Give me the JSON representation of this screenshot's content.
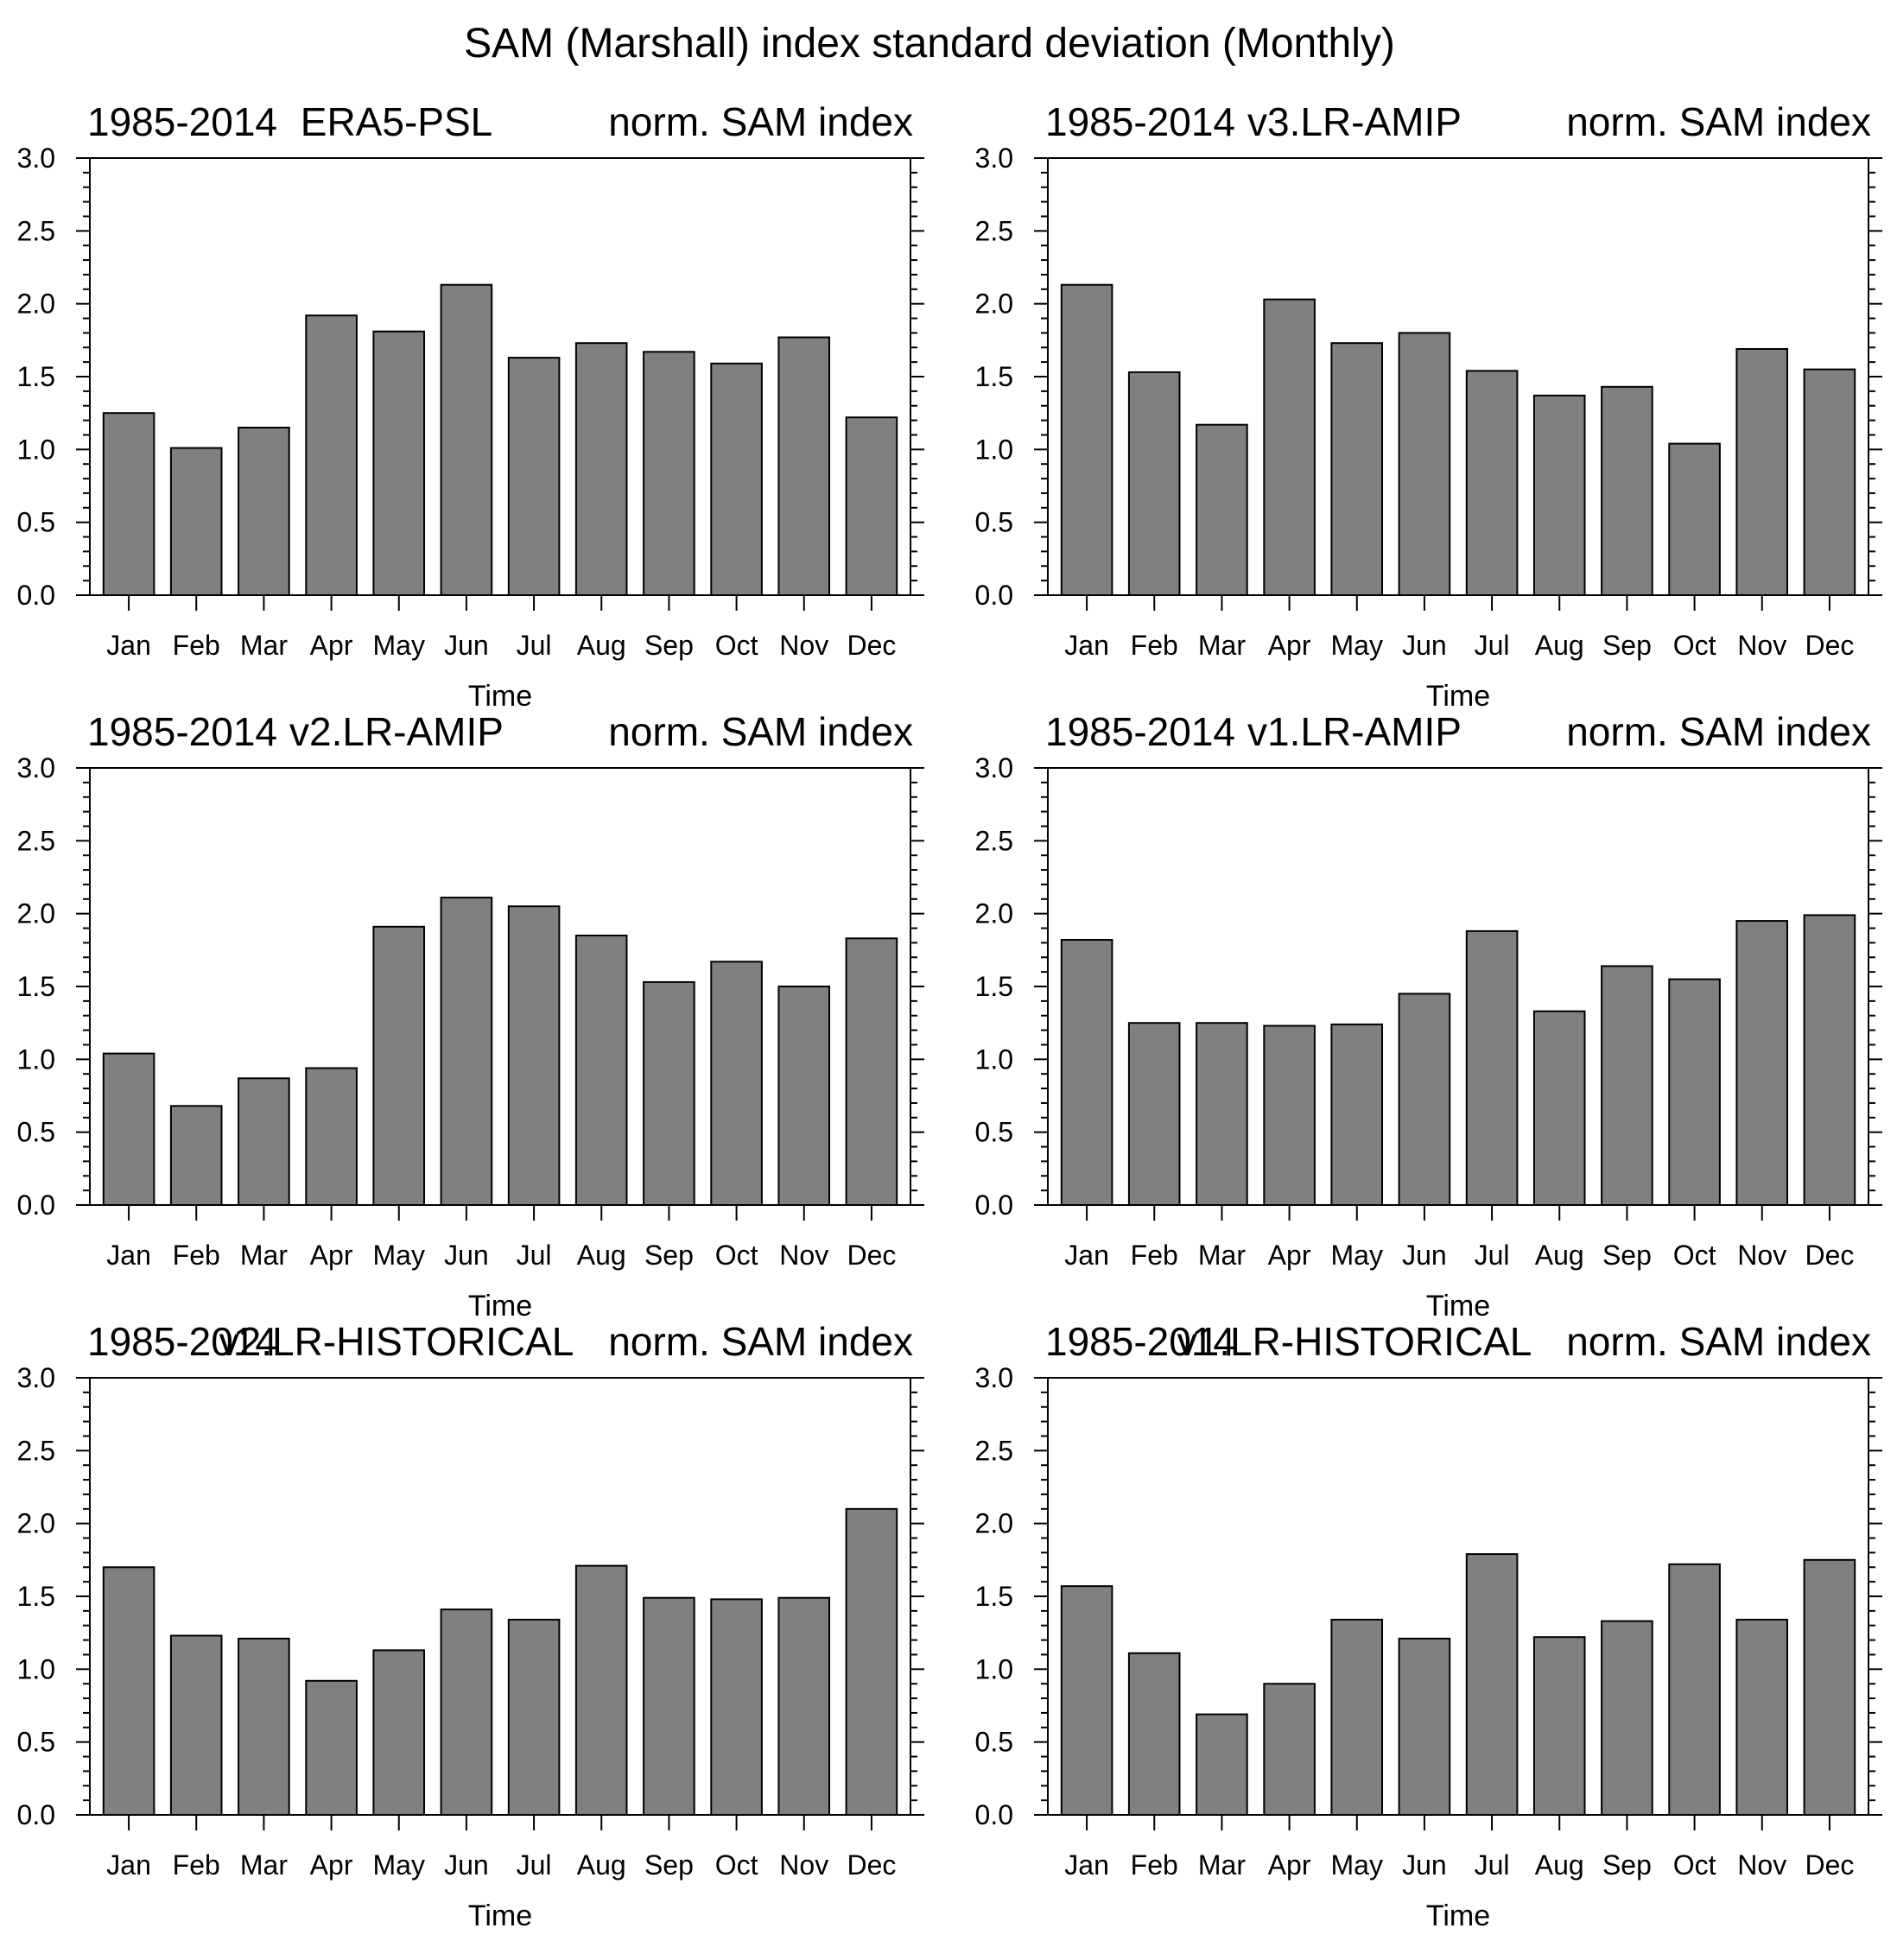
{
  "title": "SAM (Marshall) index standard deviation (Monthly)",
  "bar_color": "#808080",
  "chart_data": [
    {
      "type": "bar",
      "period": "1985-2014",
      "dataset": "ERA5-PSL",
      "metric": "norm. SAM index",
      "xlabel": "Time",
      "ylabel": "",
      "ylim": [
        0,
        3.0
      ],
      "yticks": [
        "0.0",
        "0.5",
        "1.0",
        "1.5",
        "2.0",
        "2.5",
        "3.0"
      ],
      "categories": [
        "Jan",
        "Feb",
        "Mar",
        "Apr",
        "May",
        "Jun",
        "Jul",
        "Aug",
        "Sep",
        "Oct",
        "Nov",
        "Dec"
      ],
      "values": [
        1.25,
        1.01,
        1.15,
        1.92,
        1.81,
        2.13,
        1.63,
        1.73,
        1.67,
        1.59,
        1.77,
        1.22
      ]
    },
    {
      "type": "bar",
      "period": "1985-2014",
      "dataset": "v3.LR-AMIP",
      "metric": "norm. SAM index",
      "xlabel": "Time",
      "ylabel": "",
      "ylim": [
        0,
        3.0
      ],
      "yticks": [
        "0.0",
        "0.5",
        "1.0",
        "1.5",
        "2.0",
        "2.5",
        "3.0"
      ],
      "categories": [
        "Jan",
        "Feb",
        "Mar",
        "Apr",
        "May",
        "Jun",
        "Jul",
        "Aug",
        "Sep",
        "Oct",
        "Nov",
        "Dec"
      ],
      "values": [
        2.13,
        1.53,
        1.17,
        2.03,
        1.73,
        1.8,
        1.54,
        1.37,
        1.43,
        1.04,
        1.69,
        1.55
      ]
    },
    {
      "type": "bar",
      "period": "1985-2014",
      "dataset": "v2.LR-AMIP",
      "metric": "norm. SAM index",
      "xlabel": "Time",
      "ylabel": "",
      "ylim": [
        0,
        3.0
      ],
      "yticks": [
        "0.0",
        "0.5",
        "1.0",
        "1.5",
        "2.0",
        "2.5",
        "3.0"
      ],
      "categories": [
        "Jan",
        "Feb",
        "Mar",
        "Apr",
        "May",
        "Jun",
        "Jul",
        "Aug",
        "Sep",
        "Oct",
        "Nov",
        "Dec"
      ],
      "values": [
        1.04,
        0.68,
        0.87,
        0.94,
        1.91,
        2.11,
        2.05,
        1.85,
        1.53,
        1.67,
        1.5,
        1.83
      ]
    },
    {
      "type": "bar",
      "period": "1985-2014",
      "dataset": "v1.LR-AMIP",
      "metric": "norm. SAM index",
      "xlabel": "Time",
      "ylabel": "",
      "ylim": [
        0,
        3.0
      ],
      "yticks": [
        "0.0",
        "0.5",
        "1.0",
        "1.5",
        "2.0",
        "2.5",
        "3.0"
      ],
      "categories": [
        "Jan",
        "Feb",
        "Mar",
        "Apr",
        "May",
        "Jun",
        "Jul",
        "Aug",
        "Sep",
        "Oct",
        "Nov",
        "Dec"
      ],
      "values": [
        1.82,
        1.25,
        1.25,
        1.23,
        1.24,
        1.45,
        1.88,
        1.33,
        1.64,
        1.55,
        1.95,
        1.99
      ]
    },
    {
      "type": "bar",
      "period": "1985-2014",
      "dataset": "v2.LR-HISTORICAL",
      "metric": "norm. SAM index",
      "xlabel": "Time",
      "ylabel": "",
      "ylim": [
        0,
        3.0
      ],
      "yticks": [
        "0.0",
        "0.5",
        "1.0",
        "1.5",
        "2.0",
        "2.5",
        "3.0"
      ],
      "categories": [
        "Jan",
        "Feb",
        "Mar",
        "Apr",
        "May",
        "Jun",
        "Jul",
        "Aug",
        "Sep",
        "Oct",
        "Nov",
        "Dec"
      ],
      "values": [
        1.7,
        1.23,
        1.21,
        0.92,
        1.13,
        1.41,
        1.34,
        1.71,
        1.49,
        1.48,
        1.49,
        2.1
      ]
    },
    {
      "type": "bar",
      "period": "1985-2014",
      "dataset": "v1.LR-HISTORICAL",
      "metric": "norm. SAM index",
      "xlabel": "Time",
      "ylabel": "",
      "ylim": [
        0,
        3.0
      ],
      "yticks": [
        "0.0",
        "0.5",
        "1.0",
        "1.5",
        "2.0",
        "2.5",
        "3.0"
      ],
      "categories": [
        "Jan",
        "Feb",
        "Mar",
        "Apr",
        "May",
        "Jun",
        "Jul",
        "Aug",
        "Sep",
        "Oct",
        "Nov",
        "Dec"
      ],
      "values": [
        1.57,
        1.11,
        0.69,
        0.9,
        1.34,
        1.21,
        1.79,
        1.22,
        1.33,
        1.72,
        1.34,
        1.75
      ]
    }
  ]
}
